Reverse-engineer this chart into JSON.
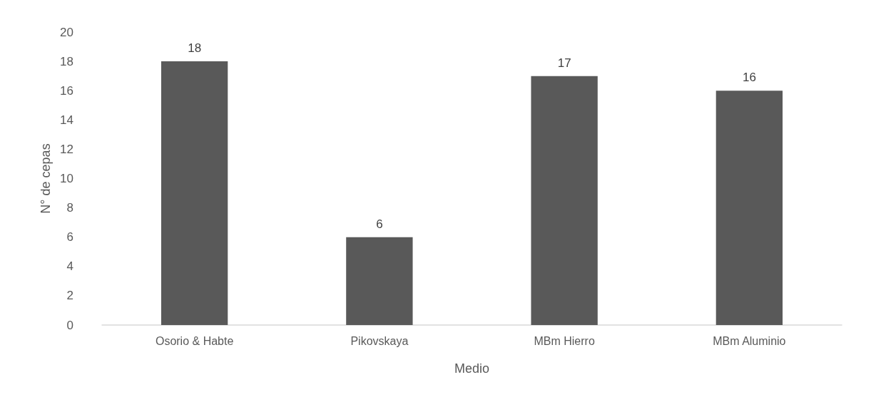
{
  "chart_data": {
    "type": "bar",
    "xlabel": "Medio",
    "ylabel": "N° de cepas",
    "categories": [
      "Osorio & Habte",
      "Pikovskaya",
      "MBm Hierro",
      "MBm Aluminio"
    ],
    "values": [
      18,
      6,
      17,
      16
    ],
    "color": "#595959",
    "ylim": [
      0,
      20
    ],
    "yticks": [
      0,
      2,
      4,
      6,
      8,
      10,
      12,
      14,
      16,
      18,
      20
    ],
    "grid": false,
    "data_labels": true
  }
}
